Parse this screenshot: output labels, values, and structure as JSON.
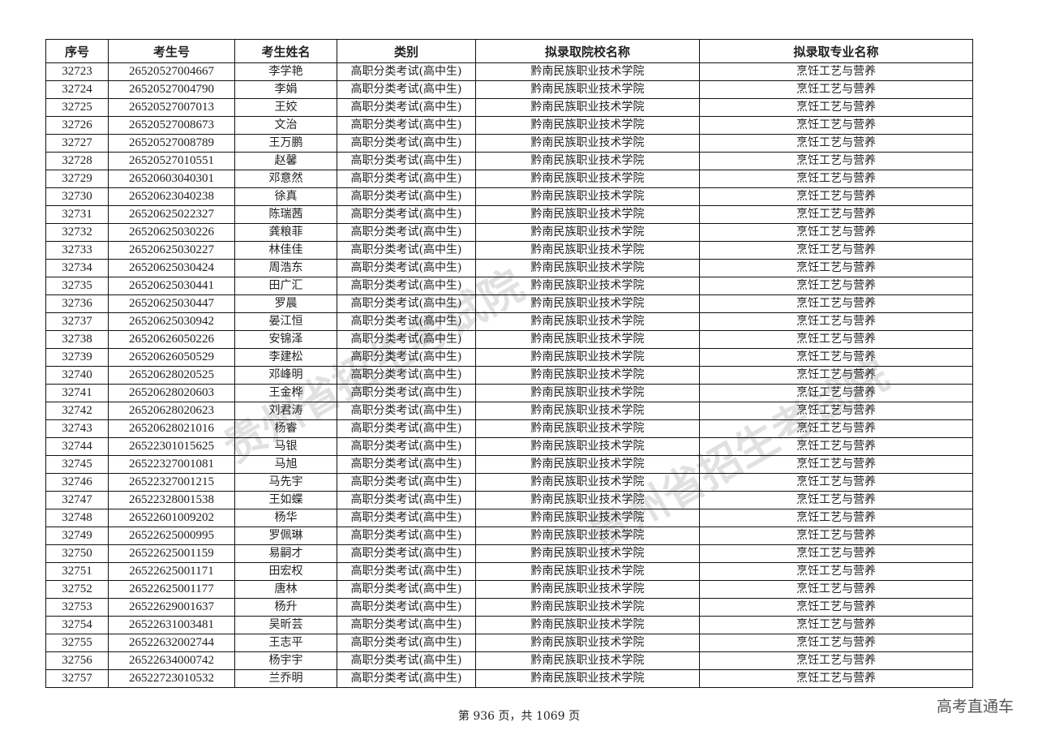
{
  "headers": [
    "序号",
    "考生号",
    "考生姓名",
    "类别",
    "拟录取院校名称",
    "拟录取专业名称"
  ],
  "rows": [
    [
      "32723",
      "26520527004667",
      "李学艳",
      "高职分类考试(高中生)",
      "黔南民族职业技术学院",
      "烹饪工艺与营养"
    ],
    [
      "32724",
      "26520527004790",
      "李娟",
      "高职分类考试(高中生)",
      "黔南民族职业技术学院",
      "烹饪工艺与营养"
    ],
    [
      "32725",
      "26520527007013",
      "王姣",
      "高职分类考试(高中生)",
      "黔南民族职业技术学院",
      "烹饪工艺与营养"
    ],
    [
      "32726",
      "26520527008673",
      "文治",
      "高职分类考试(高中生)",
      "黔南民族职业技术学院",
      "烹饪工艺与营养"
    ],
    [
      "32727",
      "26520527008789",
      "王万鹏",
      "高职分类考试(高中生)",
      "黔南民族职业技术学院",
      "烹饪工艺与营养"
    ],
    [
      "32728",
      "26520527010551",
      "赵馨",
      "高职分类考试(高中生)",
      "黔南民族职业技术学院",
      "烹饪工艺与营养"
    ],
    [
      "32729",
      "26520603040301",
      "邓意然",
      "高职分类考试(高中生)",
      "黔南民族职业技术学院",
      "烹饪工艺与营养"
    ],
    [
      "32730",
      "26520623040238",
      "徐真",
      "高职分类考试(高中生)",
      "黔南民族职业技术学院",
      "烹饪工艺与营养"
    ],
    [
      "32731",
      "26520625022327",
      "陈瑞茜",
      "高职分类考试(高中生)",
      "黔南民族职业技术学院",
      "烹饪工艺与营养"
    ],
    [
      "32732",
      "26520625030226",
      "龚粮菲",
      "高职分类考试(高中生)",
      "黔南民族职业技术学院",
      "烹饪工艺与营养"
    ],
    [
      "32733",
      "26520625030227",
      "林佳佳",
      "高职分类考试(高中生)",
      "黔南民族职业技术学院",
      "烹饪工艺与营养"
    ],
    [
      "32734",
      "26520625030424",
      "周浩东",
      "高职分类考试(高中生)",
      "黔南民族职业技术学院",
      "烹饪工艺与营养"
    ],
    [
      "32735",
      "26520625030441",
      "田广汇",
      "高职分类考试(高中生)",
      "黔南民族职业技术学院",
      "烹饪工艺与营养"
    ],
    [
      "32736",
      "26520625030447",
      "罗晨",
      "高职分类考试(高中生)",
      "黔南民族职业技术学院",
      "烹饪工艺与营养"
    ],
    [
      "32737",
      "26520625030942",
      "晏江恒",
      "高职分类考试(高中生)",
      "黔南民族职业技术学院",
      "烹饪工艺与营养"
    ],
    [
      "32738",
      "26520626050226",
      "安锦泽",
      "高职分类考试(高中生)",
      "黔南民族职业技术学院",
      "烹饪工艺与营养"
    ],
    [
      "32739",
      "26520626050529",
      "李建松",
      "高职分类考试(高中生)",
      "黔南民族职业技术学院",
      "烹饪工艺与营养"
    ],
    [
      "32740",
      "26520628020525",
      "邓峰明",
      "高职分类考试(高中生)",
      "黔南民族职业技术学院",
      "烹饪工艺与营养"
    ],
    [
      "32741",
      "26520628020603",
      "王金桦",
      "高职分类考试(高中生)",
      "黔南民族职业技术学院",
      "烹饪工艺与营养"
    ],
    [
      "32742",
      "26520628020623",
      "刘君涛",
      "高职分类考试(高中生)",
      "黔南民族职业技术学院",
      "烹饪工艺与营养"
    ],
    [
      "32743",
      "26520628021016",
      "杨睿",
      "高职分类考试(高中生)",
      "黔南民族职业技术学院",
      "烹饪工艺与营养"
    ],
    [
      "32744",
      "26522301015625",
      "马银",
      "高职分类考试(高中生)",
      "黔南民族职业技术学院",
      "烹饪工艺与营养"
    ],
    [
      "32745",
      "26522327001081",
      "马旭",
      "高职分类考试(高中生)",
      "黔南民族职业技术学院",
      "烹饪工艺与营养"
    ],
    [
      "32746",
      "26522327001215",
      "马先宇",
      "高职分类考试(高中生)",
      "黔南民族职业技术学院",
      "烹饪工艺与营养"
    ],
    [
      "32747",
      "26522328001538",
      "王如蝶",
      "高职分类考试(高中生)",
      "黔南民族职业技术学院",
      "烹饪工艺与营养"
    ],
    [
      "32748",
      "26522601009202",
      "杨华",
      "高职分类考试(高中生)",
      "黔南民族职业技术学院",
      "烹饪工艺与营养"
    ],
    [
      "32749",
      "26522625000995",
      "罗佩琳",
      "高职分类考试(高中生)",
      "黔南民族职业技术学院",
      "烹饪工艺与营养"
    ],
    [
      "32750",
      "26522625001159",
      "易嗣才",
      "高职分类考试(高中生)",
      "黔南民族职业技术学院",
      "烹饪工艺与营养"
    ],
    [
      "32751",
      "26522625001171",
      "田宏权",
      "高职分类考试(高中生)",
      "黔南民族职业技术学院",
      "烹饪工艺与营养"
    ],
    [
      "32752",
      "26522625001177",
      "唐林",
      "高职分类考试(高中生)",
      "黔南民族职业技术学院",
      "烹饪工艺与营养"
    ],
    [
      "32753",
      "26522629001637",
      "杨升",
      "高职分类考试(高中生)",
      "黔南民族职业技术学院",
      "烹饪工艺与营养"
    ],
    [
      "32754",
      "26522631003481",
      "吴昕芸",
      "高职分类考试(高中生)",
      "黔南民族职业技术学院",
      "烹饪工艺与营养"
    ],
    [
      "32755",
      "26522632002744",
      "王志平",
      "高职分类考试(高中生)",
      "黔南民族职业技术学院",
      "烹饪工艺与营养"
    ],
    [
      "32756",
      "26522634000742",
      "杨宇宇",
      "高职分类考试(高中生)",
      "黔南民族职业技术学院",
      "烹饪工艺与营养"
    ],
    [
      "32757",
      "26522723010532",
      "兰乔明",
      "高职分类考试(高中生)",
      "黔南民族职业技术学院",
      "烹饪工艺与营养"
    ]
  ],
  "footer": "第 936 页，共 1069 页",
  "watermark": "高考直通车",
  "seal_text": "贵州省招生考试院"
}
